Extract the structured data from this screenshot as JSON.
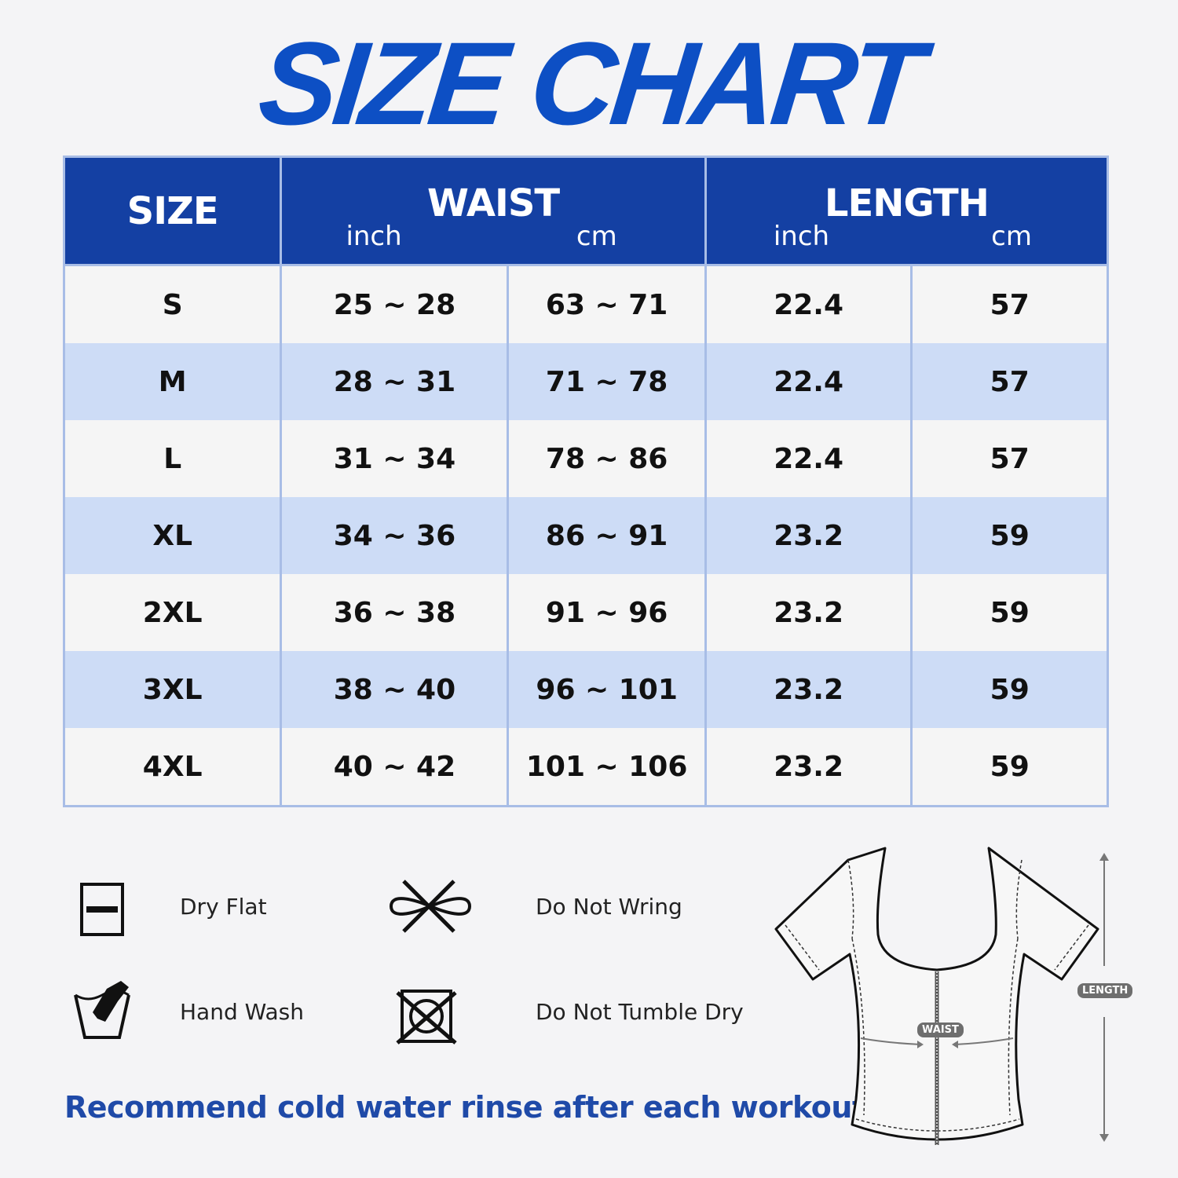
{
  "title": "SIZE CHART",
  "table": {
    "headers": {
      "size": "SIZE",
      "waist": "WAIST",
      "length": "LENGTH",
      "inch": "inch",
      "cm": "cm"
    },
    "rows": [
      [
        "S",
        "25 ~ 28",
        "63 ~ 71",
        "22.4",
        "57"
      ],
      [
        "M",
        "28 ~ 31",
        "71 ~ 78",
        "22.4",
        "57"
      ],
      [
        "L",
        "31 ~ 34",
        "78 ~ 86",
        "22.4",
        "57"
      ],
      [
        "XL",
        "34 ~ 36",
        "86 ~ 91",
        "23.2",
        "59"
      ],
      [
        "2XL",
        "36 ~ 38",
        "91 ~ 96",
        "23.2",
        "59"
      ],
      [
        "3XL",
        "38 ~ 40",
        "96 ~ 101",
        "23.2",
        "59"
      ],
      [
        "4XL",
        "40 ~ 42",
        "101 ~ 106",
        "23.2",
        "59"
      ]
    ]
  },
  "care": [
    {
      "icon": "dry-flat-icon",
      "label": "Dry Flat"
    },
    {
      "icon": "do-not-wring-icon",
      "label": "Do Not Wring"
    },
    {
      "icon": "hand-wash-icon",
      "label": "Hand Wash"
    },
    {
      "icon": "do-not-tumble-dry-icon",
      "label": "Do Not Tumble Dry"
    }
  ],
  "note": "Recommend cold water rinse after each workout.",
  "diagram": {
    "waist_label": "WAIST",
    "length_label": "LENGTH"
  },
  "colors": {
    "brand": "#0d4fc4",
    "header_bg": "#1440a3",
    "row_alt": "#cddcf6",
    "note": "#1f4aa8"
  }
}
